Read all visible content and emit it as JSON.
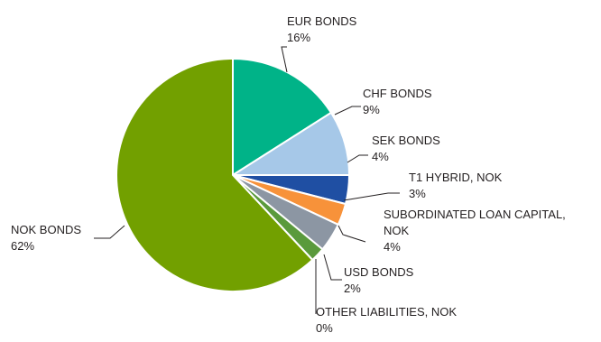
{
  "chart_data": {
    "type": "pie",
    "title": "",
    "categories": [
      "EUR BONDS",
      "CHF BONDS",
      "SEK BONDS",
      "T1 HYBRID, NOK",
      "SUBORDINATED LOAN CAPITAL, NOK",
      "USD BONDS",
      "OTHER LIABILITIES, NOK",
      "NOK BONDS"
    ],
    "values": [
      16,
      9,
      4,
      3,
      4,
      2,
      0,
      62
    ],
    "colors": [
      "#00b388",
      "#a6c8e8",
      "#1f4fa3",
      "#f7923a",
      "#8c96a3",
      "#5a9a3c",
      "#8fb1cf",
      "#72a000"
    ],
    "slices": [
      {
        "label_lines": [
          "EUR BONDS"
        ],
        "pct": "16%"
      },
      {
        "label_lines": [
          "CHF BONDS"
        ],
        "pct": "9%"
      },
      {
        "label_lines": [
          "SEK BONDS"
        ],
        "pct": "4%"
      },
      {
        "label_lines": [
          "T1 HYBRID, NOK"
        ],
        "pct": "3%"
      },
      {
        "label_lines": [
          "SUBORDINATED LOAN CAPITAL,",
          "NOK"
        ],
        "pct": "4%"
      },
      {
        "label_lines": [
          "USD BONDS"
        ],
        "pct": "2%"
      },
      {
        "label_lines": [
          "OTHER LIABILITIES, NOK"
        ],
        "pct": "0%"
      },
      {
        "label_lines": [
          "NOK BONDS"
        ],
        "pct": "62%"
      }
    ],
    "legend": "none"
  }
}
